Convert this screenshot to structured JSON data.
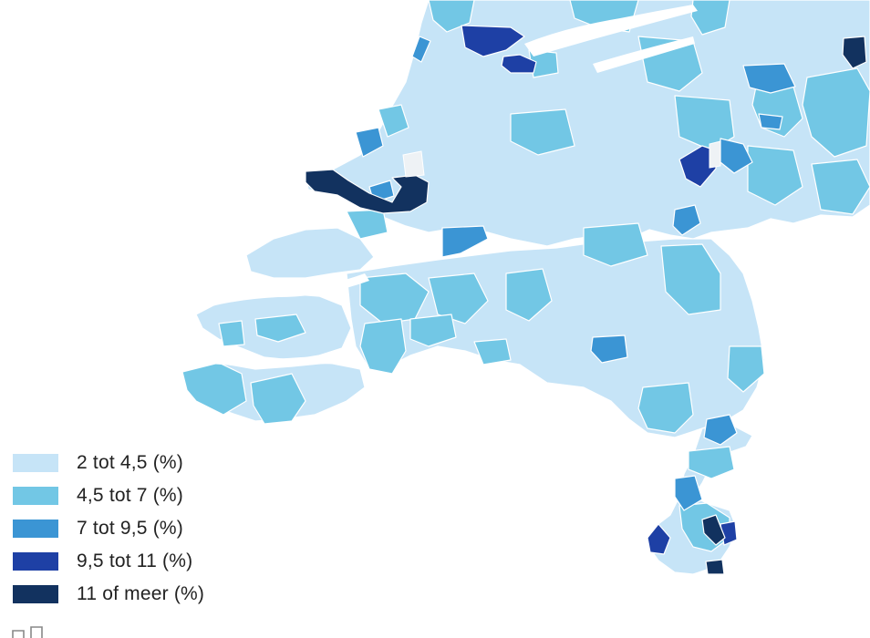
{
  "legend": {
    "items": [
      {
        "label": "2 tot 4,5 (%)",
        "color": "#c6e4f7"
      },
      {
        "label": "4,5 tot 7 (%)",
        "color": "#72c7e5"
      },
      {
        "label": "7 tot 9,5 (%)",
        "color": "#3b95d4"
      },
      {
        "label": "9,5 tot 11 (%)",
        "color": "#1e40a5"
      },
      {
        "label": "11 of meer (%)",
        "color": "#12325f"
      }
    ]
  },
  "colors": {
    "border": "#ffffff",
    "water": "#ffffff",
    "no_data": "#eef2f5"
  },
  "icons": {
    "corner": "share-icon"
  }
}
